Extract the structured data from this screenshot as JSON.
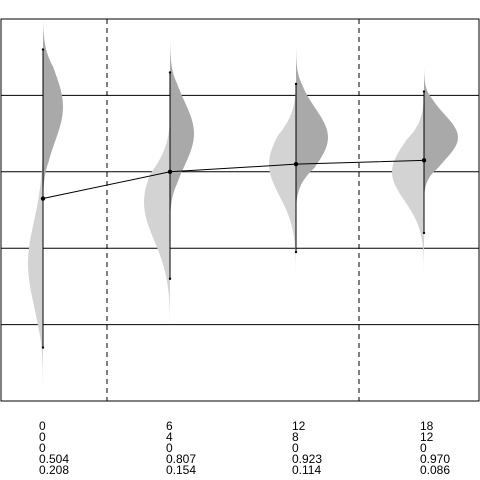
{
  "chart_data": {
    "type": "violin",
    "title": "",
    "xlabel": "",
    "ylabel": "",
    "grid": true,
    "ylim": [
      0,
      5
    ],
    "groups": [
      {
        "labels": [
          "0",
          "0",
          "0",
          "0.504",
          "0.208"
        ],
        "mean": 2.65,
        "low": 0.7,
        "high": 4.6,
        "left_density": {
          "ymin": 0.0,
          "ymax": 3.9,
          "peak": 1.8,
          "spread": 0.55,
          "width": 15
        },
        "right_density": {
          "ymin": 2.5,
          "ymax": 5.0,
          "peak": 3.85,
          "spread": 0.45,
          "width": 20
        }
      },
      {
        "labels": [
          "6",
          "4",
          "0",
          "0.807",
          "0.154"
        ],
        "mean": 3.0,
        "low": 1.6,
        "high": 4.3,
        "left_density": {
          "ymin": 0.8,
          "ymax": 3.7,
          "peak": 2.6,
          "spread": 0.5,
          "width": 26
        },
        "right_density": {
          "ymin": 2.2,
          "ymax": 4.8,
          "peak": 3.5,
          "spread": 0.42,
          "width": 24
        }
      },
      {
        "labels": [
          "12",
          "8",
          "0",
          "0.923",
          "0.114"
        ],
        "mean": 3.1,
        "low": 1.95,
        "high": 4.15,
        "left_density": {
          "ymin": 1.3,
          "ymax": 4.2,
          "peak": 3.1,
          "spread": 0.42,
          "width": 27
        },
        "right_density": {
          "ymin": 2.5,
          "ymax": 4.7,
          "peak": 3.45,
          "spread": 0.38,
          "width": 32
        }
      },
      {
        "labels": [
          "18",
          "12",
          "0",
          "0.970",
          "0.086"
        ],
        "mean": 3.15,
        "low": 2.2,
        "high": 4.05,
        "left_density": {
          "ymin": 1.4,
          "ymax": 4.1,
          "peak": 3.0,
          "spread": 0.38,
          "width": 32
        },
        "right_density": {
          "ymin": 2.6,
          "ymax": 4.4,
          "peak": 3.45,
          "spread": 0.3,
          "width": 34
        }
      }
    ]
  },
  "colors": {
    "left_violin": "#d3d3d3",
    "right_violin": "#a9a9a9",
    "line": "#000000",
    "grid": "#000000"
  }
}
